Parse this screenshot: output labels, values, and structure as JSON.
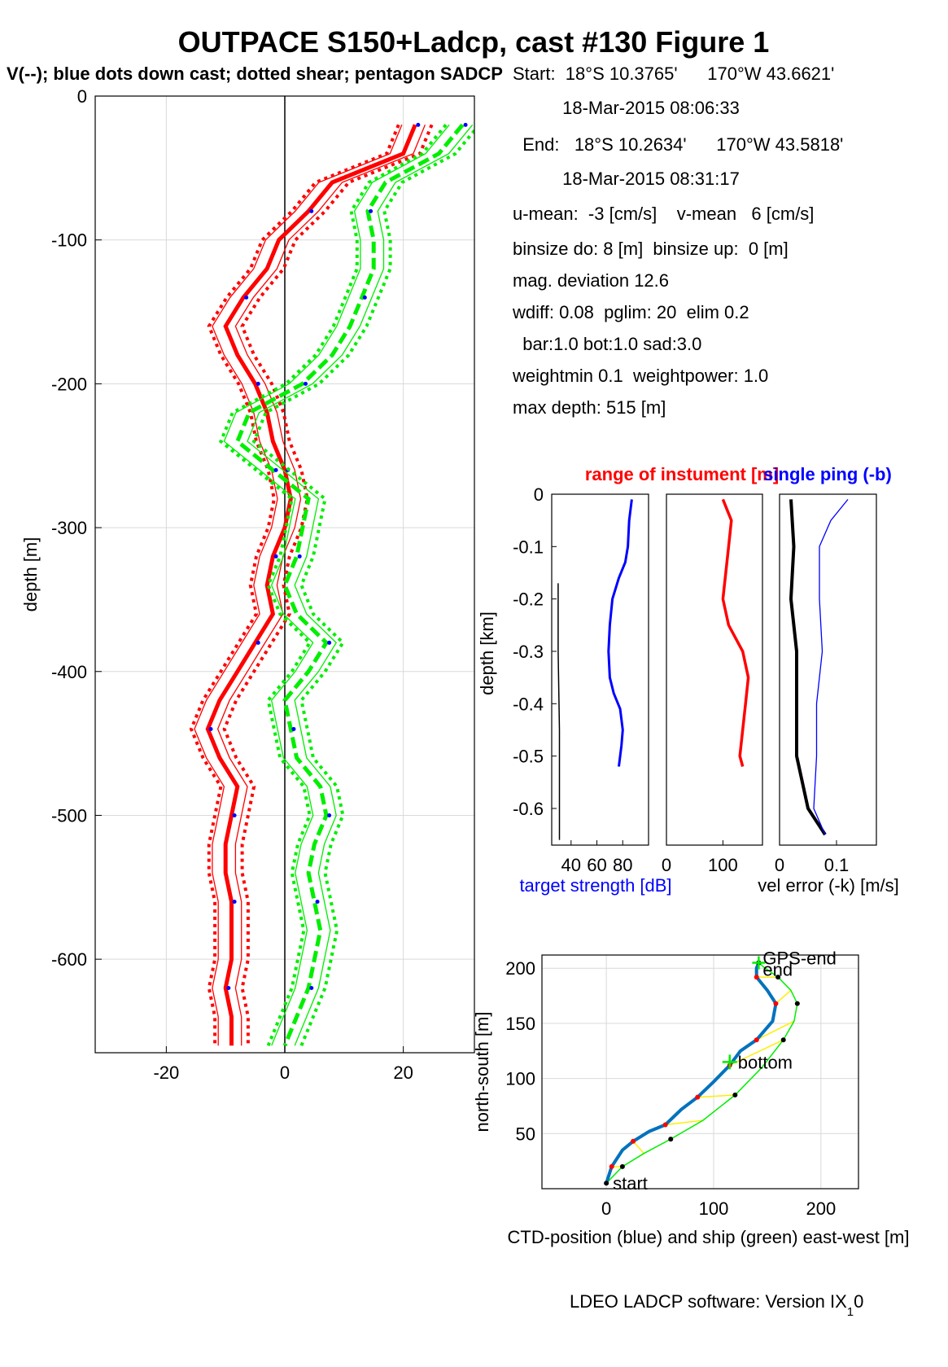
{
  "title": "OUTPACE S150+Ladcp, cast #130  Figure 1",
  "subtitle": "V(--); blue dots down cast; dotted shear; pentagon SADCP",
  "info_lines": [
    "Start:  18°S 10.3765'      170°W 43.6621'",
    "          18-Mar-2015 08:06:33",
    "  End:   18°S 10.2634'      170°W 43.5818'",
    "          18-Mar-2015 08:31:17",
    "u-mean:  -3 [cm/s]    v-mean   6 [cm/s]",
    "binsize do: 8 [m]  binsize up:  0 [m]",
    "mag. deviation 12.6",
    "wdiff: 0.08  pglim: 20  elim 0.2",
    "  bar:1.0 bot:1.0 sad:3.0",
    "weightmin 0.1  weightpower: 1.0",
    "max depth: 515 [m]"
  ],
  "footer": "LDEO LADCP software: Version IX",
  "footer_sub": "1",
  "footer_tail": "0",
  "colors": {
    "u": "#ff0000",
    "v": "#00ee00",
    "blue": "#0000ff",
    "ctd": "#0072bd",
    "black": "#000000",
    "yellow": "#ffee00",
    "grid": "#d9d9d9"
  },
  "chart_data": [
    {
      "type": "line",
      "ylabel": "depth [m]",
      "xlabel": "",
      "xlim": [
        -32,
        32
      ],
      "ylim": [
        -665,
        0
      ],
      "xticks": [
        -20,
        0,
        20
      ],
      "yticks": [
        0,
        -100,
        -200,
        -300,
        -400,
        -500,
        -600
      ],
      "grid": true,
      "series": [
        {
          "name": "u",
          "color": "red",
          "depth": [
            -20,
            -40,
            -60,
            -80,
            -100,
            -120,
            -140,
            -160,
            -180,
            -200,
            -220,
            -240,
            -260,
            -280,
            -300,
            -320,
            -340,
            -360,
            -380,
            -400,
            -420,
            -440,
            -460,
            -480,
            -500,
            -520,
            -540,
            -560,
            -580,
            -600,
            -620,
            -640,
            -660
          ],
          "values": [
            22,
            20,
            8,
            4,
            -1,
            -3,
            -7,
            -10,
            -8,
            -5,
            -3,
            -2,
            0,
            1,
            0,
            -2,
            -3,
            -2,
            -5,
            -8,
            -11,
            -13,
            -11,
            -8,
            -9,
            -10,
            -10,
            -9,
            -9,
            -9,
            -10,
            -9,
            -9
          ]
        },
        {
          "name": "v",
          "color": "green",
          "depth": [
            -20,
            -40,
            -60,
            -80,
            -100,
            -120,
            -140,
            -160,
            -180,
            -200,
            -220,
            -240,
            -260,
            -280,
            -300,
            -320,
            -340,
            -360,
            -380,
            -400,
            -420,
            -440,
            -460,
            -480,
            -500,
            -520,
            -540,
            -560,
            -580,
            -600,
            -620,
            -640,
            -660
          ],
          "values": [
            30,
            26,
            17,
            14,
            15,
            15,
            13,
            11,
            8,
            3,
            -6,
            -8,
            -2,
            4,
            3,
            2,
            0,
            2,
            7,
            4,
            0,
            1,
            2,
            6,
            7,
            5,
            4,
            5,
            6,
            5,
            4,
            2,
            0
          ]
        }
      ],
      "spread": 2.8
    },
    {
      "type": "line",
      "title": "range of instument [m]",
      "ylabel": "depth [km]",
      "xlabel": "target strength [dB]",
      "xlim": [
        25,
        100
      ],
      "ylim": [
        -0.67,
        0
      ],
      "xticks": [
        40,
        60,
        80
      ],
      "yticks": [
        0,
        -0.1,
        -0.2,
        -0.3,
        -0.4,
        -0.5,
        -0.6
      ],
      "series": [
        {
          "name": "target strength",
          "color": "blue",
          "depth": [
            -0.01,
            -0.05,
            -0.1,
            -0.13,
            -0.16,
            -0.2,
            -0.25,
            -0.3,
            -0.35,
            -0.38,
            -0.41,
            -0.45,
            -0.48,
            -0.52
          ],
          "values": [
            87,
            85,
            84,
            82,
            77,
            72,
            70,
            69,
            70,
            73,
            78,
            80,
            79,
            77
          ]
        },
        {
          "name": "range",
          "color": "black",
          "depth": [
            -0.17,
            -0.3,
            -0.45,
            -0.66
          ],
          "values": [
            30,
            30,
            31,
            31
          ]
        }
      ]
    },
    {
      "type": "line",
      "xlim": [
        0,
        170
      ],
      "ylim": [
        -0.67,
        0
      ],
      "xticks": [
        0,
        100
      ],
      "series": [
        {
          "name": "range",
          "color": "red",
          "depth": [
            -0.01,
            -0.05,
            -0.1,
            -0.15,
            -0.2,
            -0.25,
            -0.3,
            -0.35,
            -0.4,
            -0.45,
            -0.5,
            -0.52
          ],
          "values": [
            100,
            115,
            110,
            105,
            100,
            110,
            135,
            145,
            140,
            135,
            130,
            135
          ]
        }
      ]
    },
    {
      "type": "line",
      "title": "single ping (-b)",
      "xlabel": "vel error (-k) [m/s]",
      "xlim": [
        0,
        0.17
      ],
      "ylim": [
        -0.67,
        0
      ],
      "xticks": [
        0,
        0.1
      ],
      "series": [
        {
          "name": "vel error",
          "color": "black",
          "depth": [
            -0.01,
            -0.1,
            -0.2,
            -0.3,
            -0.4,
            -0.5,
            -0.6,
            -0.65
          ],
          "values": [
            0.02,
            0.025,
            0.02,
            0.03,
            0.03,
            0.03,
            0.05,
            0.08
          ]
        },
        {
          "name": "single ping",
          "color": "blue",
          "depth": [
            -0.01,
            -0.05,
            -0.1,
            -0.2,
            -0.3,
            -0.4,
            -0.5,
            -0.6,
            -0.65
          ],
          "values": [
            0.12,
            0.09,
            0.07,
            0.07,
            0.075,
            0.065,
            0.065,
            0.06,
            0.08
          ]
        }
      ]
    },
    {
      "type": "line",
      "xlabel": "CTD-position (blue) and ship (green) east-west [m]",
      "ylabel": "north-south [m]",
      "xlim": [
        -60,
        235
      ],
      "ylim": [
        0,
        212
      ],
      "xticks": [
        0,
        100,
        200
      ],
      "yticks": [
        50,
        100,
        150,
        200
      ],
      "labels": {
        "start": "start",
        "end": "end",
        "bottom": "bottom",
        "gps_end": "GPS-end"
      },
      "series": [
        {
          "name": "CTD",
          "color": "blue",
          "x": [
            0,
            5,
            15,
            25,
            40,
            55,
            70,
            85,
            100,
            115,
            125,
            140,
            155,
            158,
            150,
            140,
            140,
            142
          ],
          "y": [
            5,
            20,
            35,
            43,
            52,
            58,
            72,
            83,
            97,
            112,
            125,
            135,
            152,
            168,
            180,
            192,
            200,
            205
          ]
        },
        {
          "name": "ship",
          "color": "green",
          "x": [
            0,
            15,
            35,
            60,
            90,
            120,
            145,
            165,
            175,
            178,
            172,
            160,
            148,
            142
          ],
          "y": [
            5,
            20,
            32,
            45,
            62,
            85,
            110,
            135,
            152,
            168,
            180,
            192,
            200,
            205
          ]
        }
      ]
    }
  ]
}
